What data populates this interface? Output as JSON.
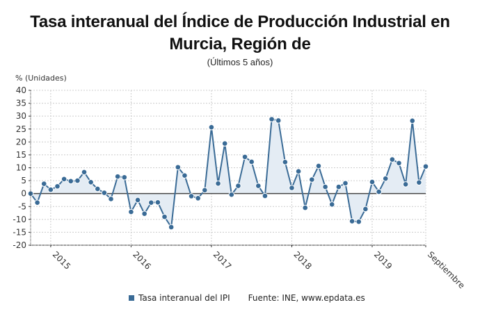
{
  "title": "Tasa interanual del Índice de Producción Industrial en Murcia, Región de",
  "title_line1": "Tasa interanual del Índice de Producción Industrial en",
  "title_line2": "Murcia, Región de",
  "subtitle": "(Últimos 5 años)",
  "legend": {
    "series_label": "Tasa interanual del IPI",
    "source": "Fuente: INE, www.epdata.es"
  },
  "colors": {
    "line": "#3a6b96",
    "fill": "#e4ecf4",
    "zero_line": "#444444",
    "grid": "#cccccc",
    "axis": "#333333"
  },
  "chart_data": {
    "type": "line",
    "title": "Tasa interanual del Índice de Producción Industrial en Murcia, Región de",
    "subtitle": "(Últimos 5 años)",
    "xlabel": "",
    "ylabel": "% (Unidades)",
    "ylim": [
      -20,
      40
    ],
    "yticks": [
      40,
      35,
      30,
      25,
      20,
      15,
      10,
      5,
      0,
      -5,
      -10,
      -15,
      -20
    ],
    "grid": true,
    "legend_position": "bottom",
    "x_tick_labels": [
      {
        "label": "2015",
        "index": 3
      },
      {
        "label": "2016",
        "index": 15
      },
      {
        "label": "2017",
        "index": 27
      },
      {
        "label": "2018",
        "index": 39
      },
      {
        "label": "2019",
        "index": 51
      },
      {
        "label": "Septiembre",
        "index": 59
      }
    ],
    "x": [
      "2014-10",
      "2014-11",
      "2014-12",
      "2015-01",
      "2015-02",
      "2015-03",
      "2015-04",
      "2015-05",
      "2015-06",
      "2015-07",
      "2015-08",
      "2015-09",
      "2015-10",
      "2015-11",
      "2015-12",
      "2016-01",
      "2016-02",
      "2016-03",
      "2016-04",
      "2016-05",
      "2016-06",
      "2016-07",
      "2016-08",
      "2016-09",
      "2016-10",
      "2016-11",
      "2016-12",
      "2017-01",
      "2017-02",
      "2017-03",
      "2017-04",
      "2017-05",
      "2017-06",
      "2017-07",
      "2017-08",
      "2017-09",
      "2017-10",
      "2017-11",
      "2017-12",
      "2018-01",
      "2018-02",
      "2018-03",
      "2018-04",
      "2018-05",
      "2018-06",
      "2018-07",
      "2018-08",
      "2018-09",
      "2018-10",
      "2018-11",
      "2018-12",
      "2019-01",
      "2019-02",
      "2019-03",
      "2019-04",
      "2019-05",
      "2019-06",
      "2019-07",
      "2019-08",
      "2019-09"
    ],
    "series": [
      {
        "name": "Tasa interanual del IPI",
        "values": [
          0.0,
          -3.5,
          3.8,
          1.5,
          2.8,
          5.6,
          4.8,
          5.0,
          8.3,
          4.4,
          1.8,
          0.3,
          -2.1,
          6.6,
          6.3,
          -7.1,
          -2.5,
          -7.8,
          -3.5,
          -3.4,
          -9.0,
          -13.0,
          10.2,
          7.0,
          -1.0,
          -1.8,
          1.3,
          25.7,
          3.9,
          19.4,
          -0.4,
          3.0,
          14.2,
          12.3,
          3.0,
          -0.9,
          28.8,
          28.3,
          12.2,
          2.2,
          8.6,
          -5.5,
          5.4,
          10.7,
          2.6,
          -4.2,
          2.6,
          4.0,
          -10.7,
          -10.9,
          -6.0,
          4.5,
          0.7,
          5.8,
          13.2,
          11.8,
          3.6,
          28.2,
          4.3,
          10.5
        ]
      }
    ]
  }
}
